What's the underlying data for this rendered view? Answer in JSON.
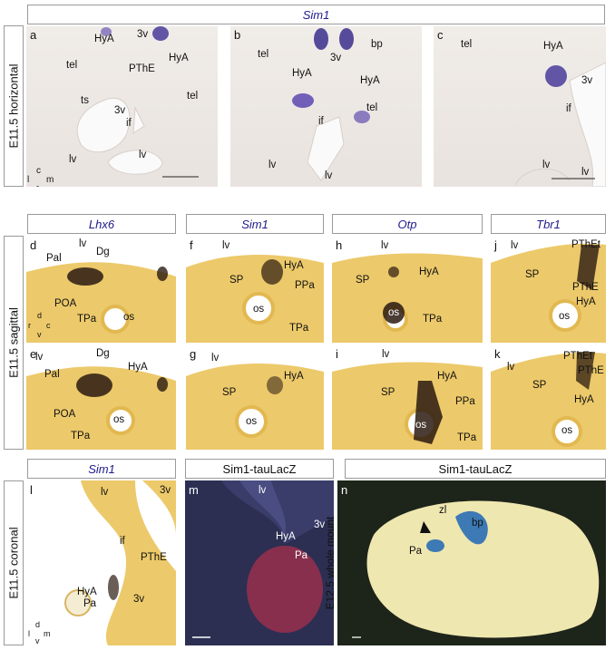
{
  "headers": {
    "top": "Sim1",
    "row2": [
      "Lhx6",
      "Sim1",
      "Otp",
      "Tbr1"
    ],
    "row3": [
      "Sim1",
      "Sim1-tauLacZ",
      "Sim1-tauLacZ"
    ]
  },
  "side_labels": {
    "row1": "E11.5  horizontal",
    "row2": "E11.5  sagittal",
    "row3": "E11.5  coronal",
    "row3_right": "E12.5 whole mount"
  },
  "panels": {
    "a": {
      "letter": "a",
      "labels": {
        "tv": "3v",
        "hya1": "HyA",
        "hya2": "HyA",
        "tel1": "tel",
        "tel2": "tel",
        "pthe": "PThE",
        "ts": "ts",
        "tv2": "3v",
        "if": "if",
        "lv1": "lv",
        "lv2": "lv"
      },
      "axis": {
        "c": "c",
        "l": "l",
        "m": "m",
        "r": "r"
      }
    },
    "b": {
      "letter": "b",
      "labels": {
        "bp": "bp",
        "tv": "3v",
        "tel1": "tel",
        "tel2": "tel",
        "hya1": "HyA",
        "hya2": "HyA",
        "if": "if",
        "lv1": "lv",
        "lv2": "lv"
      }
    },
    "c": {
      "letter": "c",
      "labels": {
        "tel": "tel",
        "hya": "HyA",
        "tv": "3v",
        "if": "if",
        "lv1": "lv",
        "lv2": "lv"
      }
    },
    "d": {
      "letter": "d",
      "labels": {
        "lv": "lv",
        "pal": "Pal",
        "dg": "Dg",
        "poa": "POA",
        "tpa": "TPa",
        "os": "os"
      },
      "axis": {
        "d": "d",
        "r": "r",
        "c": "c",
        "v": "v"
      }
    },
    "e": {
      "letter": "e",
      "labels": {
        "lv": "lv",
        "pal": "Pal",
        "dg": "Dg",
        "hya": "HyA",
        "poa": "POA",
        "os": "os",
        "tpa": "TPa"
      }
    },
    "f": {
      "letter": "f",
      "labels": {
        "lv": "lv",
        "sp": "SP",
        "hya": "HyA",
        "ppa": "PPa",
        "os": "os",
        "tpa": "TPa"
      }
    },
    "g": {
      "letter": "g",
      "labels": {
        "lv": "lv",
        "sp": "SP",
        "hya": "HyA",
        "os": "os"
      }
    },
    "h": {
      "letter": "h",
      "labels": {
        "lv": "lv",
        "sp": "SP",
        "hya": "HyA",
        "os": "os",
        "tpa": "TPa"
      }
    },
    "i": {
      "letter": "i",
      "labels": {
        "lv": "lv",
        "sp": "SP",
        "hya": "HyA",
        "ppa": "PPa",
        "os": "os",
        "tpa": "TPa"
      }
    },
    "j": {
      "letter": "j",
      "labels": {
        "lv": "lv",
        "sp": "SP",
        "pthet": "PThEt",
        "pthe": "PThE",
        "hya": "HyA",
        "os": "os"
      }
    },
    "k": {
      "letter": "k",
      "labels": {
        "lv": "lv",
        "sp": "SP",
        "pthet": "PThEt",
        "pthe": "PThE",
        "hya": "HyA",
        "os": "os"
      }
    },
    "l": {
      "letter": "l",
      "labels": {
        "lv": "lv",
        "tv1": "3v",
        "if": "if",
        "pthe": "PThE",
        "hya": "HyA",
        "pa": "Pa",
        "tv2": "3v"
      },
      "axis": {
        "d": "d",
        "l": "l",
        "m": "m",
        "v": "v"
      }
    },
    "m": {
      "letter": "m",
      "labels": {
        "lv": "lv",
        "tv": "3v",
        "hya": "HyA",
        "pa": "Pa"
      }
    },
    "n": {
      "letter": "n",
      "labels": {
        "zl": "zl",
        "bp": "bp",
        "pa": "Pa"
      }
    }
  }
}
